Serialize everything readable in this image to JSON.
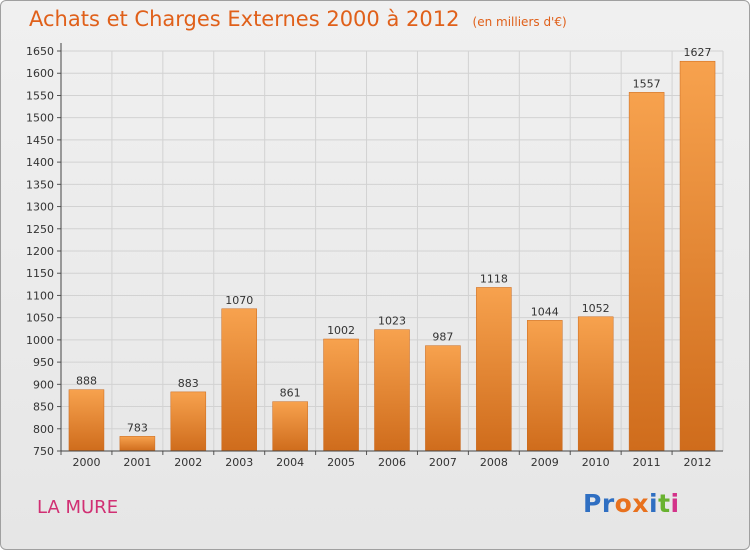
{
  "header": {
    "title": "Achats et Charges Externes 2000 à 2012",
    "unit": "(en milliers d'€)"
  },
  "footer": {
    "commune": "LA MURE",
    "logo": {
      "letters": [
        "P",
        "r",
        "o",
        "x",
        "i",
        "t",
        "i"
      ],
      "colors": [
        "#2f6fc2",
        "#2f6fc2",
        "#e8711e",
        "#e8711e",
        "#2f6fc2",
        "#69b230",
        "#d3338a"
      ]
    }
  },
  "chart_data": {
    "type": "bar",
    "title": "Achats et Charges Externes 2000 à 2012",
    "subtitle": "(en milliers d'€)",
    "xlabel": "",
    "ylabel": "",
    "categories": [
      "2000",
      "2001",
      "2002",
      "2003",
      "2004",
      "2005",
      "2006",
      "2007",
      "2008",
      "2009",
      "2010",
      "2011",
      "2012"
    ],
    "values": [
      888,
      783,
      883,
      1070,
      861,
      1002,
      1023,
      987,
      1118,
      1044,
      1052,
      1557,
      1627
    ],
    "ylim": [
      750,
      1650
    ],
    "yticks": [
      750,
      800,
      850,
      900,
      950,
      1000,
      1050,
      1100,
      1150,
      1200,
      1250,
      1300,
      1350,
      1400,
      1450,
      1500,
      1550,
      1600,
      1650
    ],
    "grid": true,
    "legend": "none",
    "bar_color": "#f0913a"
  }
}
